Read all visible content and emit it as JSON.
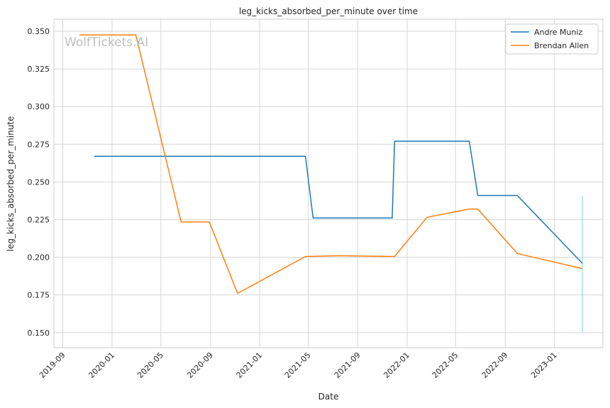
{
  "chart_data": {
    "type": "line",
    "title": "leg_kicks_absorbed_per_minute over time",
    "xlabel": "Date",
    "ylabel": "leg_kicks_absorbed_per_minute",
    "watermark": "WolfTickets.AI",
    "grid": true,
    "legend_position": "top-right",
    "x_axis_type": "date",
    "xlim": [
      "2019-08-10",
      "2023-05-01"
    ],
    "ylim": [
      0.14,
      0.358
    ],
    "x_ticks": [
      "2019-09",
      "2020-01",
      "2020-05",
      "2020-09",
      "2021-01",
      "2021-05",
      "2021-09",
      "2022-01",
      "2022-05",
      "2022-09",
      "2023-01"
    ],
    "y_ticks": [
      "0.150",
      "0.175",
      "0.200",
      "0.225",
      "0.250",
      "0.275",
      "0.300",
      "0.325",
      "0.350"
    ],
    "series": [
      {
        "name": "Andre Muniz",
        "color": "#1f77b4",
        "points": [
          [
            "2019-11-18",
            0.267
          ],
          [
            "2021-04-24",
            0.267
          ],
          [
            "2021-05-13",
            0.226
          ],
          [
            "2021-11-25",
            0.226
          ],
          [
            "2021-12-01",
            0.277
          ],
          [
            "2022-06-04",
            0.277
          ],
          [
            "2022-06-25",
            0.241
          ],
          [
            "2022-10-01",
            0.241
          ],
          [
            "2023-03-11",
            0.196
          ]
        ]
      },
      {
        "name": "Brendan Allen",
        "color": "#ff7f0e",
        "points": [
          [
            "2019-10-12",
            0.3475
          ],
          [
            "2020-02-29",
            0.3475
          ],
          [
            "2020-06-20",
            0.2235
          ],
          [
            "2020-08-29",
            0.2235
          ],
          [
            "2020-11-07",
            0.176
          ],
          [
            "2021-04-24",
            0.2005
          ],
          [
            "2021-07-17",
            0.201
          ],
          [
            "2021-12-01",
            0.2005
          ],
          [
            "2022-02-19",
            0.2265
          ],
          [
            "2022-06-04",
            0.232
          ],
          [
            "2022-06-25",
            0.232
          ],
          [
            "2022-10-01",
            0.2025
          ],
          [
            "2023-03-11",
            0.1925
          ]
        ]
      },
      {
        "name": "",
        "color": "#17becf",
        "points": [
          [
            "2023-03-11",
            0.15
          ],
          [
            "2023-03-11",
            0.241
          ]
        ]
      }
    ]
  }
}
